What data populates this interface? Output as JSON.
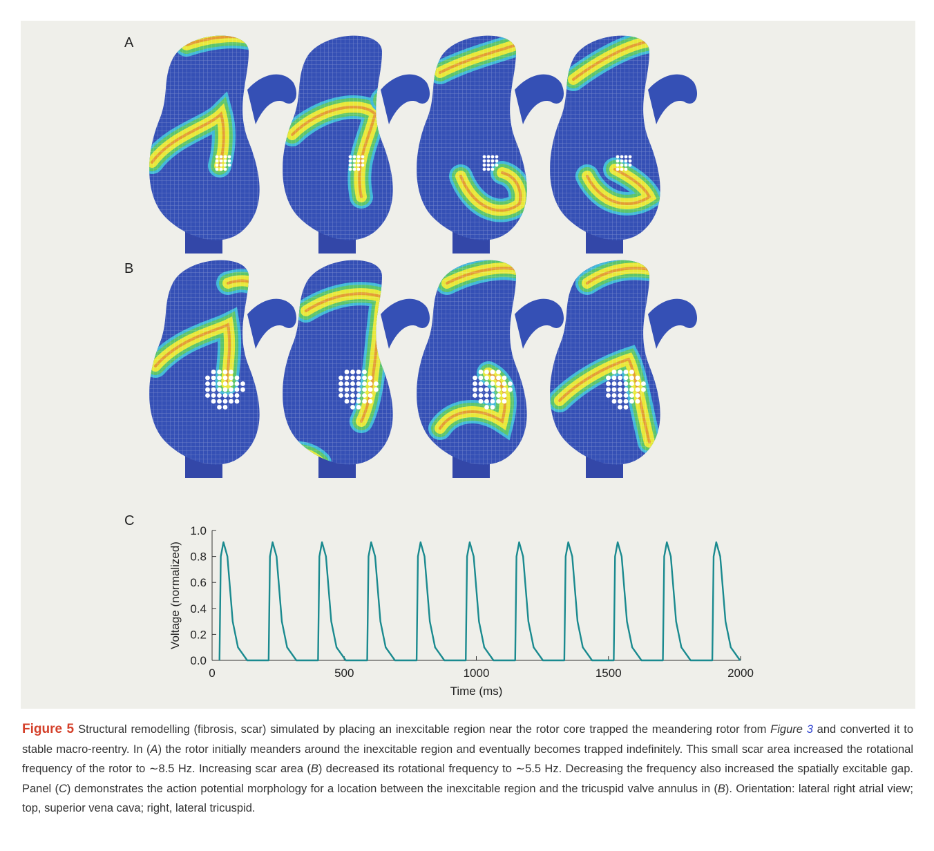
{
  "figure": {
    "panel_labels": [
      "A",
      "B",
      "C"
    ]
  },
  "chart_data": {
    "type": "line",
    "xlabel": "Time (ms)",
    "ylabel": "Voltage (normalized)",
    "color": "#1a8a8f",
    "x": [
      28,
      33,
      43,
      58,
      78,
      98,
      133,
      214,
      219,
      229,
      244,
      264,
      284,
      319,
      401,
      406,
      416,
      431,
      451,
      471,
      506,
      587,
      592,
      602,
      617,
      637,
      657,
      692,
      774,
      779,
      789,
      804,
      824,
      844,
      879,
      960,
      965,
      975,
      990,
      1010,
      1030,
      1065,
      1147,
      1152,
      1162,
      1177,
      1197,
      1217,
      1252,
      1333,
      1338,
      1348,
      1363,
      1383,
      1403,
      1438,
      1520,
      1525,
      1535,
      1550,
      1570,
      1590,
      1625,
      1706,
      1711,
      1721,
      1736,
      1756,
      1776,
      1811,
      1893,
      1898,
      1908,
      1923,
      1943,
      1963,
      1998
    ],
    "values": [
      0,
      0.8,
      0.91,
      0.8,
      0.3,
      0.1,
      0,
      0,
      0.8,
      0.91,
      0.8,
      0.3,
      0.1,
      0,
      0,
      0.8,
      0.91,
      0.8,
      0.3,
      0.1,
      0,
      0,
      0.8,
      0.91,
      0.8,
      0.3,
      0.1,
      0,
      0,
      0.8,
      0.91,
      0.8,
      0.3,
      0.1,
      0,
      0,
      0.8,
      0.91,
      0.8,
      0.3,
      0.1,
      0,
      0,
      0.8,
      0.91,
      0.8,
      0.3,
      0.1,
      0,
      0,
      0.8,
      0.91,
      0.8,
      0.3,
      0.1,
      0,
      0,
      0.8,
      0.91,
      0.8,
      0.3,
      0.1,
      0,
      0,
      0.8,
      0.91,
      0.8,
      0.3,
      0.1,
      0,
      0,
      0.8,
      0.91,
      0.8,
      0.3,
      0.1,
      0
    ],
    "xlim": [
      0,
      2000
    ],
    "xticks": [
      0,
      500,
      1000,
      1500,
      2000
    ],
    "ylim": [
      0,
      1
    ],
    "yticks": [
      {
        "value": 0,
        "label": "0.0"
      },
      {
        "value": 0.2,
        "label": "0.2"
      },
      {
        "value": 0.4,
        "label": "0.4"
      },
      {
        "value": 0.6,
        "label": "0.6"
      },
      {
        "value": 0.8,
        "label": "0.8"
      },
      {
        "value": 1,
        "label": "1.0"
      }
    ],
    "grid": false
  },
  "caption": {
    "label": "Figure 5",
    "parts": [
      {
        "text": "Structural remodelling (fibrosis, scar) simulated by placing an inexcitable region near the rotor core trapped the meandering rotor from "
      },
      {
        "text": "Figure ",
        "italic": true
      },
      {
        "text": "3",
        "italic": true,
        "link": true
      },
      {
        "text": " and converted it to stable macro-reentry. In ("
      },
      {
        "text": "A",
        "italic": true
      },
      {
        "text": ") the rotor initially meanders around the inexcitable region and eventually becomes trapped indefinitely. This small scar area increased the rotational frequency of the rotor to ∼8.5 Hz. Increasing scar area ("
      },
      {
        "text": "B",
        "italic": true
      },
      {
        "text": ") decreased its rotational frequency to ∼5.5 Hz. Decreasing the frequency also increased the spatially excitable gap. Panel ("
      },
      {
        "text": "C",
        "italic": true
      },
      {
        "text": ") demonstrates the action potential morphology for a location between the inexcitable region and the tricuspid valve annulus in ("
      },
      {
        "text": "B",
        "italic": true
      },
      {
        "text": "). Orientation: lateral right atrial view; top, superior vena cava; right, lateral tricuspid."
      }
    ]
  }
}
